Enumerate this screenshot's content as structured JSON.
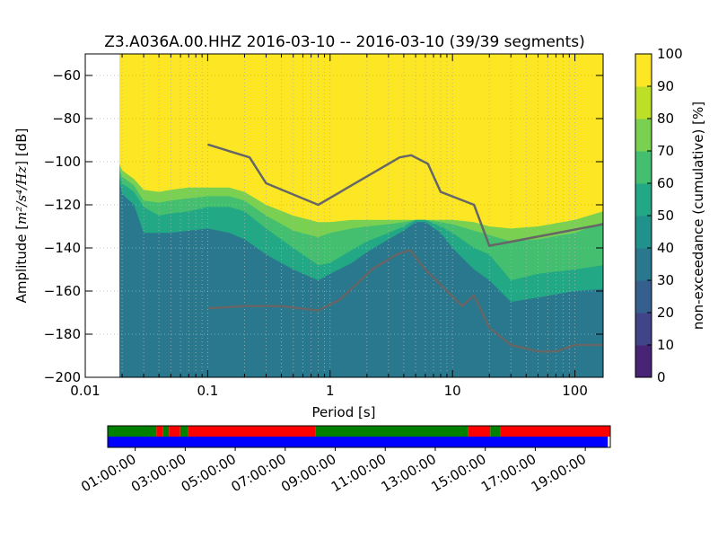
{
  "chart_data": {
    "type": "heatmap",
    "title": "Z3.A036A.00.HHZ   2016-03-10 -- 2016-03-10  (39/39 segments)",
    "xlabel": "Period [s]",
    "ylabel_prefix": "Amplitude [",
    "ylabel_units": "m²/s⁴/Hz",
    "ylabel_suffix": "] [dB]",
    "x_scale": "log",
    "xlim": [
      0.01,
      170
    ],
    "ylim": [
      -200,
      -50
    ],
    "x_ticks": [
      {
        "value": 0.01,
        "label": "0.01"
      },
      {
        "value": 0.1,
        "label": "0.1"
      },
      {
        "value": 1,
        "label": "1"
      },
      {
        "value": 10,
        "label": "10"
      },
      {
        "value": 100,
        "label": "100"
      }
    ],
    "y_ticks": [
      {
        "value": -60,
        "label": "−60"
      },
      {
        "value": -80,
        "label": "−80"
      },
      {
        "value": -100,
        "label": "−100"
      },
      {
        "value": -120,
        "label": "−120"
      },
      {
        "value": -140,
        "label": "−140"
      },
      {
        "value": -160,
        "label": "−160"
      },
      {
        "value": -180,
        "label": "−180"
      },
      {
        "value": -200,
        "label": "−200"
      }
    ],
    "grid": true,
    "data_start_period": 0.019,
    "colormap": [
      "#440154",
      "#482475",
      "#414487",
      "#355f8d",
      "#2a788e",
      "#21918c",
      "#22a884",
      "#44bf70",
      "#7ad151",
      "#bddf26",
      "#fde725"
    ],
    "colorbar": {
      "label": "non-exceedance (cumulative) [%]",
      "range": [
        0,
        100
      ],
      "ticks": [
        "0",
        "10",
        "20",
        "30",
        "40",
        "50",
        "60",
        "70",
        "80",
        "90",
        "100"
      ]
    },
    "density_bands": {
      "periods": [
        0.019,
        0.02,
        0.025,
        0.03,
        0.04,
        0.05,
        0.07,
        0.1,
        0.15,
        0.2,
        0.3,
        0.5,
        0.8,
        1,
        1.5,
        2,
        3,
        4,
        5,
        6,
        8,
        10,
        15,
        20,
        30,
        50,
        100,
        170
      ],
      "bands": [
        {
          "pct": 35,
          "upper": [
            -200,
            -200,
            -200,
            -200,
            -200,
            -200,
            -200,
            -200,
            -200,
            -200,
            -200,
            -200,
            -200,
            -200,
            -200,
            -200,
            -200,
            -200,
            -200,
            -200,
            -200,
            -200,
            -200,
            -200,
            -200,
            -200,
            -200,
            -200
          ]
        },
        {
          "pct": 37,
          "upper": [
            -108,
            -115,
            -120,
            -133,
            -133,
            -133,
            -132,
            -131,
            -133,
            -136,
            -143,
            -150,
            -155,
            -152,
            -147,
            -142,
            -136,
            -132,
            -128,
            -128,
            -133,
            -140,
            -150,
            -155,
            -165,
            -163,
            -160,
            -159
          ]
        },
        {
          "pct": 55,
          "upper": [
            -105,
            -110,
            -114,
            -121,
            -125,
            -124,
            -123,
            -121,
            -121,
            -123,
            -131,
            -140,
            -148,
            -147,
            -141,
            -137,
            -133,
            -130,
            -127,
            -127,
            -130,
            -133,
            -140,
            -143,
            -155,
            -152,
            -150,
            -148
          ]
        },
        {
          "pct": 65,
          "upper": [
            -103,
            -107,
            -111,
            -118,
            -119,
            -118,
            -117,
            -116,
            -116,
            -118,
            -125,
            -132,
            -135,
            -133,
            -131,
            -130,
            -129,
            -128,
            -127,
            -127,
            -128,
            -129,
            -132,
            -134,
            -137,
            -136,
            -133,
            -128
          ]
        },
        {
          "pct": 80,
          "upper": [
            -101,
            -104,
            -108,
            -113,
            -114,
            -113,
            -112,
            -112,
            -112,
            -114,
            -120,
            -125,
            -128,
            -128,
            -127,
            -127,
            -127,
            -127,
            -127,
            -127,
            -127,
            -127,
            -128,
            -130,
            -131,
            -130,
            -127,
            -123
          ]
        }
      ]
    },
    "series": [
      {
        "name": "",
        "color": "#666666",
        "x": [
          0.1,
          0.22,
          0.3,
          0.8,
          3.7,
          4.6,
          6.3,
          8,
          15,
          20,
          170
        ],
        "y": [
          -92,
          -98,
          -110,
          -120,
          -98,
          -97,
          -101,
          -114,
          -120,
          -139,
          -129
        ]
      },
      {
        "name": "",
        "color": "#666666",
        "x": [
          0.1,
          0.2,
          0.4,
          0.8,
          1.2,
          2.2,
          3.5,
          4.5,
          6,
          8,
          12,
          15,
          20,
          30,
          50,
          70,
          100,
          170
        ],
        "y": [
          -168,
          -167,
          -167,
          -169,
          -164,
          -150,
          -143,
          -141,
          -150,
          -157,
          -167,
          -162,
          -177,
          -185,
          -188,
          -188,
          -185,
          -185
        ]
      }
    ],
    "timeline": {
      "ticks": [
        "01:00:00",
        "03:00:00",
        "05:00:00",
        "07:00:00",
        "09:00:00",
        "11:00:00",
        "13:00:00",
        "15:00:00",
        "17:00:00",
        "19:00:00"
      ],
      "tick_hours": [
        1,
        3,
        5,
        7,
        9,
        11,
        13,
        15,
        17,
        19
      ],
      "range_hours": [
        -0.1,
        20
      ],
      "top_colors": {
        "good": "#008000",
        "bad": "#ff0000"
      },
      "top_segments": [
        {
          "start": -0.1,
          "end": 1.85,
          "status": "good"
        },
        {
          "start": 1.85,
          "end": 2.1,
          "status": "bad"
        },
        {
          "start": 2.1,
          "end": 2.35,
          "status": "good"
        },
        {
          "start": 2.35,
          "end": 2.8,
          "status": "bad"
        },
        {
          "start": 2.8,
          "end": 3.1,
          "status": "good"
        },
        {
          "start": 3.1,
          "end": 8.2,
          "status": "bad"
        },
        {
          "start": 8.2,
          "end": 14.3,
          "status": "good"
        },
        {
          "start": 14.3,
          "end": 15.2,
          "status": "bad"
        },
        {
          "start": 15.2,
          "end": 15.6,
          "status": "good"
        },
        {
          "start": 15.6,
          "end": 20,
          "status": "bad"
        }
      ],
      "bottom_color": "#0000ff",
      "bottom_segments": [
        {
          "start": -0.1,
          "end": 19.9
        }
      ]
    }
  }
}
